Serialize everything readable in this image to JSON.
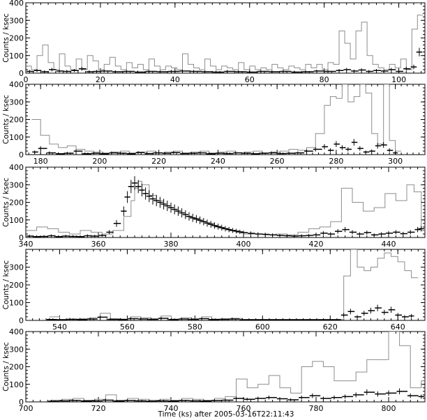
{
  "figure": {
    "ylabel": "Counts / ksec",
    "xlabel": "Time (ks) after 2005-03-16T22:11:43"
  },
  "colors": {
    "gray_series": "#8c8c8c",
    "black_series": "#000000"
  },
  "chart_data": [
    {
      "type": "line",
      "xlim": [
        0,
        107
      ],
      "ylim": [
        0,
        400
      ],
      "xticks": [
        "0",
        "20",
        "40",
        "60",
        "80",
        "100"
      ],
      "yticks": [
        "0",
        "100",
        "200",
        "300",
        "400"
      ],
      "series": [
        {
          "style": "gray-step",
          "x": [
            0,
            1.5,
            3,
            4.5,
            6,
            7.5,
            9,
            10.5,
            12,
            13.5,
            15,
            16.5,
            18,
            19.5,
            21,
            22.5,
            24,
            25.5,
            27,
            28.5,
            30,
            31.5,
            33,
            34.5,
            36,
            37.5,
            39,
            40.5,
            42,
            43.5,
            45,
            46.5,
            48,
            49.5,
            51,
            52.5,
            54,
            55.5,
            57,
            58.5,
            60,
            61.5,
            63,
            64.5,
            66,
            67.5,
            69,
            70.5,
            72,
            73.5,
            75,
            76.5,
            78,
            79.5,
            81,
            82.5,
            84,
            85.5,
            87,
            88.5,
            90,
            91.5,
            93,
            94.5,
            96,
            97.5,
            99,
            100.5,
            102,
            103.5,
            105
          ],
          "y": [
            40,
            20,
            100,
            160,
            60,
            20,
            110,
            40,
            20,
            80,
            20,
            100,
            70,
            20,
            50,
            90,
            40,
            20,
            60,
            30,
            50,
            20,
            80,
            40,
            20,
            40,
            30,
            20,
            110,
            50,
            30,
            20,
            80,
            40,
            20,
            40,
            30,
            20,
            60,
            20,
            40,
            20,
            30,
            20,
            50,
            30,
            20,
            40,
            30,
            20,
            50,
            30,
            50,
            20,
            60,
            50,
            240,
            170,
            80,
            240,
            290,
            100,
            50,
            30,
            20,
            50,
            30,
            80,
            20,
            250,
            330
          ]
        },
        {
          "style": "black-errorbars",
          "x": [
            1,
            3,
            5,
            7,
            9,
            11,
            13,
            15,
            17,
            19,
            21,
            24,
            27,
            30,
            33,
            36,
            39,
            42,
            45,
            48,
            51,
            54,
            57,
            60,
            63,
            66,
            69,
            72,
            75,
            78,
            81,
            84,
            86,
            88,
            90,
            92,
            94,
            96,
            98,
            100,
            102,
            104,
            105.5
          ],
          "y": [
            10,
            15,
            8,
            20,
            12,
            10,
            15,
            25,
            8,
            10,
            12,
            8,
            10,
            6,
            10,
            8,
            10,
            12,
            10,
            8,
            6,
            10,
            8,
            6,
            10,
            8,
            10,
            6,
            8,
            12,
            10,
            15,
            20,
            12,
            18,
            10,
            15,
            12,
            20,
            10,
            25,
            35,
            120
          ]
        }
      ]
    },
    {
      "type": "line",
      "xlim": [
        175,
        310
      ],
      "ylim": [
        0,
        400
      ],
      "xticks": [
        "180",
        "200",
        "220",
        "240",
        "260",
        "280",
        "300"
      ],
      "yticks": [
        "0",
        "100",
        "200",
        "300",
        "400"
      ],
      "series": [
        {
          "style": "gray-step",
          "x": [
            177,
            180,
            183,
            186,
            189,
            192,
            195,
            198,
            201,
            204,
            207,
            210,
            213,
            216,
            219,
            222,
            225,
            228,
            231,
            234,
            237,
            240,
            243,
            246,
            249,
            252,
            255,
            258,
            261,
            264,
            267,
            270,
            273,
            276,
            278,
            280,
            282,
            284,
            286,
            288,
            290,
            292,
            294,
            296,
            298,
            300
          ],
          "y": [
            200,
            110,
            60,
            40,
            50,
            30,
            20,
            15,
            10,
            15,
            20,
            10,
            15,
            20,
            10,
            15,
            20,
            10,
            15,
            20,
            10,
            15,
            20,
            10,
            15,
            20,
            10,
            15,
            20,
            30,
            25,
            40,
            120,
            280,
            330,
            320,
            420,
            300,
            330,
            420,
            350,
            120,
            60,
            400,
            80,
            20
          ]
        },
        {
          "style": "black-errorbars",
          "x": [
            178,
            180,
            183,
            186,
            189,
            192,
            195,
            198,
            201,
            204,
            207,
            210,
            213,
            216,
            219,
            222,
            225,
            228,
            231,
            234,
            237,
            240,
            243,
            246,
            249,
            252,
            255,
            258,
            261,
            264,
            267,
            270,
            273,
            276,
            278,
            280,
            282,
            284,
            286,
            288,
            290,
            292,
            294,
            296,
            298,
            300
          ],
          "y": [
            15,
            35,
            10,
            5,
            8,
            20,
            5,
            8,
            5,
            10,
            8,
            5,
            12,
            6,
            10,
            8,
            12,
            6,
            8,
            10,
            5,
            8,
            6,
            10,
            8,
            5,
            8,
            10,
            6,
            8,
            10,
            20,
            30,
            45,
            25,
            60,
            40,
            30,
            70,
            35,
            15,
            20,
            50,
            55,
            25,
            10
          ]
        }
      ]
    },
    {
      "type": "line",
      "xlim": [
        340,
        450
      ],
      "ylim": [
        0,
        400
      ],
      "xticks": [
        "340",
        "360",
        "380",
        "400",
        "420",
        "440"
      ],
      "yticks": [
        "0",
        "100",
        "200",
        "300",
        "400"
      ],
      "series": [
        {
          "style": "gray-step",
          "x": [
            340,
            343,
            346,
            349,
            352,
            355,
            358,
            361,
            364,
            367,
            369,
            370,
            371,
            372,
            374,
            376,
            378,
            380,
            382,
            384,
            386,
            388,
            390,
            392,
            394,
            396,
            398,
            400,
            403,
            406,
            409,
            412,
            415,
            418,
            421,
            424,
            427,
            430,
            433,
            436,
            439,
            442,
            445,
            447,
            449
          ],
          "y": [
            40,
            60,
            50,
            30,
            20,
            40,
            30,
            20,
            40,
            120,
            210,
            280,
            320,
            300,
            240,
            210,
            180,
            160,
            140,
            120,
            110,
            90,
            80,
            60,
            50,
            40,
            30,
            20,
            20,
            15,
            20,
            15,
            30,
            50,
            60,
            90,
            280,
            200,
            150,
            170,
            250,
            210,
            300,
            260,
            40
          ]
        },
        {
          "style": "black-errorbars",
          "x": [
            341,
            343,
            345,
            347,
            349,
            351,
            353,
            355,
            357,
            359,
            361,
            363,
            365,
            367,
            368,
            369,
            370,
            371,
            372,
            373,
            374,
            375,
            376,
            377,
            378,
            379,
            380,
            381,
            382,
            383,
            384,
            385,
            386,
            387,
            388,
            389,
            390,
            391,
            392,
            393,
            394,
            395,
            396,
            397,
            398,
            399,
            400,
            402,
            404,
            406,
            408,
            410,
            412,
            414,
            416,
            418,
            420,
            422,
            424,
            426,
            428,
            430,
            432,
            434,
            436,
            438,
            440,
            442,
            444,
            446,
            448,
            449
          ],
          "y": [
            8,
            5,
            6,
            10,
            5,
            8,
            6,
            5,
            10,
            8,
            12,
            30,
            80,
            150,
            230,
            290,
            310,
            290,
            270,
            250,
            235,
            220,
            210,
            200,
            190,
            180,
            170,
            160,
            150,
            140,
            130,
            120,
            112,
            105,
            98,
            90,
            82,
            75,
            68,
            62,
            56,
            50,
            45,
            40,
            36,
            32,
            28,
            24,
            20,
            18,
            15,
            12,
            10,
            8,
            10,
            12,
            15,
            25,
            20,
            35,
            45,
            30,
            20,
            28,
            15,
            20,
            25,
            30,
            22,
            30,
            45,
            50
          ]
        }
      ]
    },
    {
      "type": "line",
      "xlim": [
        530,
        648
      ],
      "ylim": [
        0,
        400
      ],
      "xticks": [
        "540",
        "560",
        "580",
        "600",
        "620",
        "640"
      ],
      "yticks": [
        "0",
        "100",
        "200",
        "300"
      ],
      "series": [
        {
          "style": "gray-step",
          "x": [
            537,
            540,
            543,
            546,
            549,
            552,
            555,
            558,
            561,
            564,
            567,
            570,
            573,
            576,
            579,
            582,
            585,
            588,
            591,
            594,
            624,
            626,
            628,
            630,
            632,
            634,
            636,
            638,
            640,
            642,
            644
          ],
          "y": [
            20,
            5,
            8,
            10,
            15,
            40,
            10,
            8,
            20,
            15,
            10,
            25,
            8,
            15,
            10,
            20,
            8,
            10,
            12,
            5,
            250,
            420,
            300,
            280,
            300,
            350,
            380,
            360,
            330,
            280,
            240
          ]
        },
        {
          "style": "black-errorbars",
          "x": [
            537,
            540,
            543,
            546,
            549,
            552,
            555,
            558,
            561,
            564,
            567,
            570,
            573,
            576,
            579,
            582,
            585,
            588,
            591,
            594,
            624,
            626,
            628,
            630,
            632,
            634,
            636,
            638,
            640,
            642,
            644
          ],
          "y": [
            5,
            4,
            6,
            5,
            8,
            18,
            6,
            5,
            10,
            8,
            6,
            12,
            5,
            8,
            6,
            10,
            5,
            6,
            8,
            4,
            30,
            50,
            20,
            40,
            55,
            70,
            45,
            60,
            30,
            20,
            25
          ]
        }
      ]
    },
    {
      "type": "line",
      "xlim": [
        700,
        810
      ],
      "ylim": [
        0,
        400
      ],
      "xticks": [
        "700",
        "720",
        "740",
        "760",
        "780",
        "800"
      ],
      "yticks": [
        "0",
        "100",
        "200",
        "300",
        "400"
      ],
      "series": [
        {
          "style": "gray-step",
          "x": [
            707,
            710,
            713,
            716,
            719,
            722,
            725,
            728,
            731,
            734,
            737,
            740,
            743,
            746,
            749,
            752,
            755,
            758,
            761,
            764,
            767,
            770,
            773,
            776,
            779,
            782,
            785,
            788,
            791,
            794,
            797,
            800,
            803,
            806,
            809
          ],
          "y": [
            10,
            15,
            20,
            10,
            15,
            40,
            10,
            20,
            15,
            10,
            15,
            10,
            20,
            15,
            10,
            20,
            30,
            130,
            80,
            100,
            150,
            80,
            50,
            200,
            230,
            200,
            120,
            120,
            170,
            240,
            240,
            420,
            320,
            80,
            120
          ]
        },
        {
          "style": "black-errorbars",
          "x": [
            707,
            710,
            713,
            716,
            719,
            722,
            725,
            728,
            731,
            734,
            737,
            740,
            743,
            746,
            749,
            752,
            755,
            758,
            761,
            764,
            767,
            770,
            773,
            776,
            779,
            782,
            785,
            788,
            791,
            794,
            797,
            800,
            803,
            806,
            809
          ],
          "y": [
            4,
            6,
            8,
            5,
            6,
            10,
            5,
            8,
            6,
            4,
            6,
            5,
            8,
            6,
            5,
            8,
            10,
            20,
            15,
            20,
            25,
            18,
            12,
            25,
            35,
            20,
            25,
            30,
            40,
            55,
            45,
            50,
            60,
            35,
            30
          ]
        }
      ]
    }
  ]
}
